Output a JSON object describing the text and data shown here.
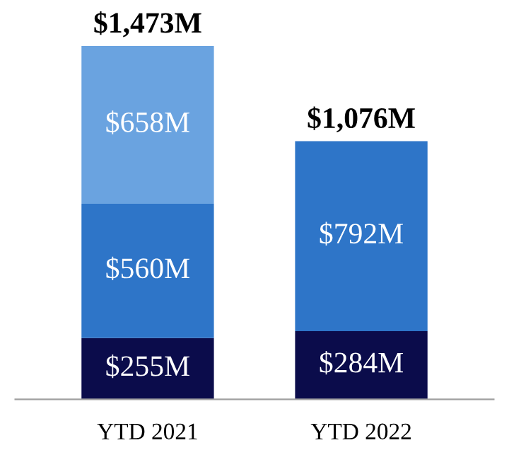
{
  "chart_data": {
    "type": "bar",
    "stacked": true,
    "data_labels": true,
    "categories": [
      "YTD 2021",
      "YTD 2022"
    ],
    "series": [
      {
        "color": "#0b0c4b",
        "values": [
          255,
          284
        ],
        "value_labels": [
          "$255M",
          "$284M"
        ]
      },
      {
        "color": "#2e75c8",
        "values": [
          560,
          792
        ],
        "value_labels": [
          "$560M",
          "$792M"
        ]
      },
      {
        "color": "#6aa3e0",
        "values": [
          658,
          null
        ],
        "value_labels": [
          "$658M",
          null
        ]
      }
    ],
    "totals": [
      "$1,473M",
      "$1,076M"
    ],
    "grid": false,
    "legend": false
  }
}
